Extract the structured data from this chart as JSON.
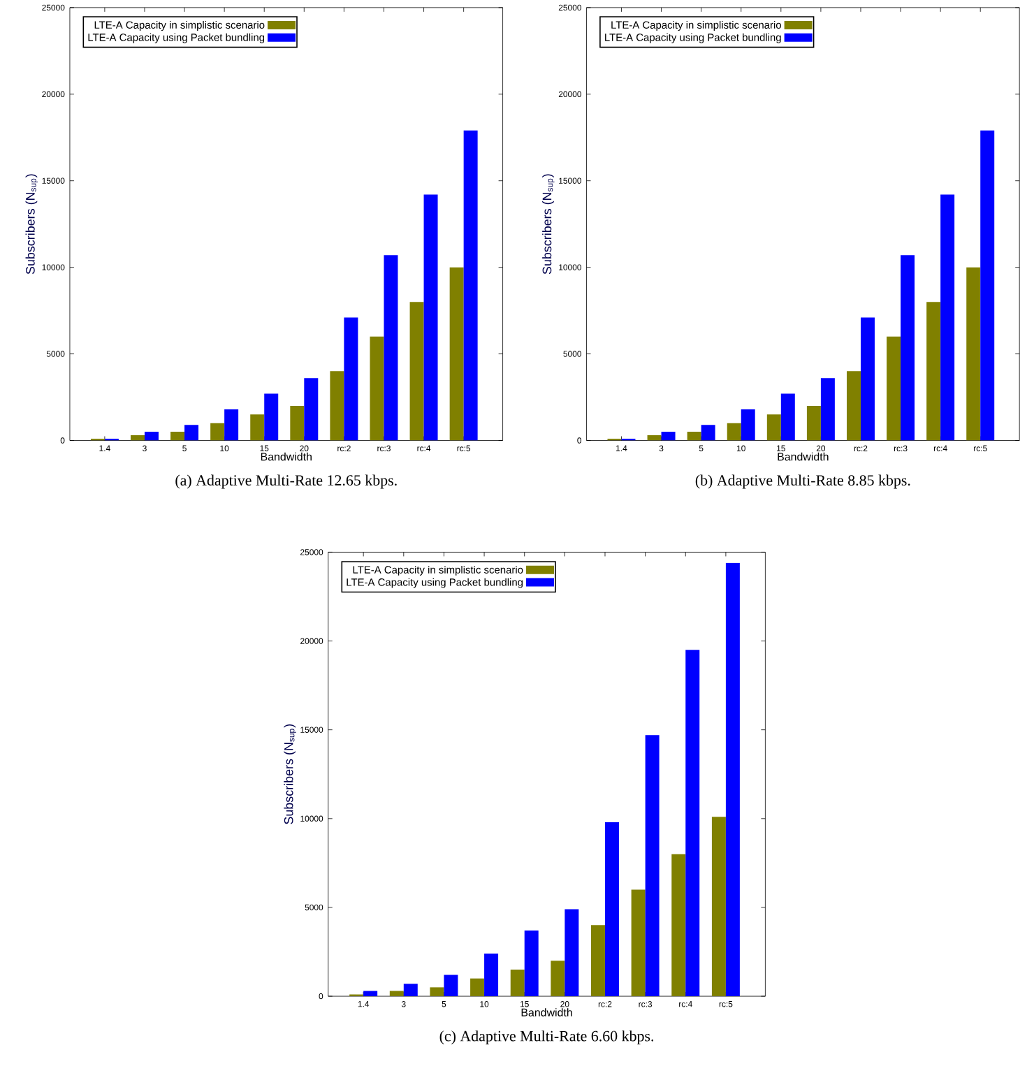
{
  "chart_data": [
    {
      "type": "bar",
      "title": "(a)  Adaptive Multi-Rate 12.65 kbps.",
      "xlabel": "Bandwidth",
      "ylabel": "Subscribers (N$_{sup}$)",
      "categories": [
        "1.4",
        "3",
        "5",
        "10",
        "15",
        "20",
        "rc:2",
        "rc:3",
        "rc:4",
        "rc:5"
      ],
      "ylim": [
        0,
        25000
      ],
      "yticks": [
        0,
        5000,
        10000,
        15000,
        20000,
        25000
      ],
      "legend": "top left",
      "series": [
        {
          "name": "LTE-A Capacity in simplistic scenario",
          "color": "#808000",
          "values": [
            100,
            300,
            500,
            1000,
            1500,
            2000,
            4000,
            6000,
            8000,
            10000
          ]
        },
        {
          "name": "LTE-A Capacity using Packet bundling",
          "color": "#0000ff",
          "values": [
            100,
            500,
            900,
            1800,
            2700,
            3600,
            7100,
            10700,
            14200,
            17900
          ]
        }
      ]
    },
    {
      "type": "bar",
      "title": "(b)  Adaptive Multi-Rate 8.85 kbps.",
      "xlabel": "Bandwidth",
      "ylabel": "Subscribers (N$_{sup}$)",
      "categories": [
        "1.4",
        "3",
        "5",
        "10",
        "15",
        "20",
        "rc:2",
        "rc:3",
        "rc:4",
        "rc:5"
      ],
      "ylim": [
        0,
        25000
      ],
      "yticks": [
        0,
        5000,
        10000,
        15000,
        20000,
        25000
      ],
      "legend": "top left",
      "series": [
        {
          "name": "LTE-A Capacity in simplistic scenario",
          "color": "#808000",
          "values": [
            100,
            300,
            500,
            1000,
            1500,
            2000,
            4000,
            6000,
            8000,
            10000
          ]
        },
        {
          "name": "LTE-A Capacity using Packet bundling",
          "color": "#0000ff",
          "values": [
            100,
            500,
            900,
            1800,
            2700,
            3600,
            7100,
            10700,
            14200,
            17900
          ]
        }
      ]
    },
    {
      "type": "bar",
      "title": "(c)  Adaptive Multi-Rate 6.60 kbps.",
      "xlabel": "Bandwidth",
      "ylabel": "Subscribers (N$_{sup}$)",
      "categories": [
        "1.4",
        "3",
        "5",
        "10",
        "15",
        "20",
        "rc:2",
        "rc:3",
        "rc:4",
        "rc:5"
      ],
      "ylim": [
        0,
        25000
      ],
      "yticks": [
        0,
        5000,
        10000,
        15000,
        20000,
        25000
      ],
      "legend": "top left",
      "series": [
        {
          "name": "LTE-A Capacity in simplistic scenario",
          "color": "#808000",
          "values": [
            100,
            300,
            500,
            1000,
            1500,
            2000,
            4000,
            6000,
            8000,
            10100
          ]
        },
        {
          "name": "LTE-A Capacity using Packet bundling",
          "color": "#0000ff",
          "values": [
            300,
            700,
            1200,
            2400,
            3700,
            4900,
            9800,
            14700,
            19500,
            24400
          ]
        }
      ]
    }
  ]
}
